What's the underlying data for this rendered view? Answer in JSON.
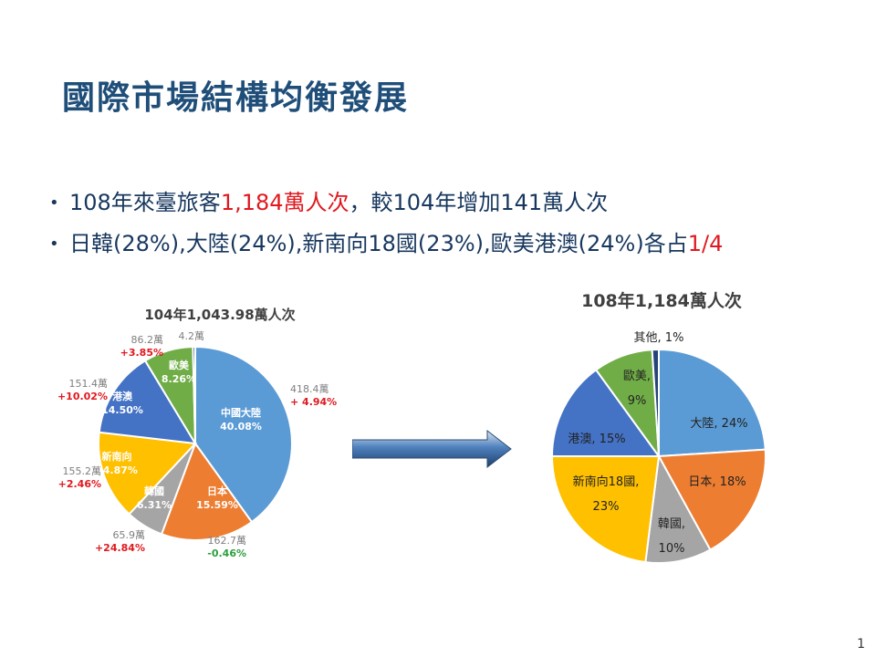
{
  "slide": {
    "title": "國際市場結構均衡發展",
    "bullets": [
      {
        "pre": "108年來臺旅客",
        "highlight": "1,184萬人次",
        "post": "，較104年增加141萬人次"
      },
      {
        "pre": "日韓(28%),大陸(24%),新南向18國(23%),歐美港澳(24%)各占",
        "highlight": "1/4",
        "post": ""
      }
    ],
    "page_number": "1"
  },
  "colors": {
    "china": "#5b9bd5",
    "japan": "#ed7d31",
    "korea": "#a5a5a5",
    "southbound": "#ffc000",
    "hk_macau": "#4472c4",
    "euro_us": "#70ad47",
    "other": "#264478",
    "red": "#e0191f",
    "green": "#2e9e3e",
    "title": "#1f4e79",
    "text": "#17375e"
  },
  "chart_data": [
    {
      "type": "pie",
      "title": "104年1,043.98萬人次",
      "slices": [
        {
          "label": "中國大陸",
          "pct_label": "40.08%",
          "value": 40.08,
          "color": "#5b9bd5",
          "count": "418.4萬",
          "change": "+ 4.94%",
          "change_color": "#e0191f"
        },
        {
          "label": "日本",
          "pct_label": "15.59%",
          "value": 15.59,
          "color": "#ed7d31",
          "count": "162.7萬",
          "change": "-0.46%",
          "change_color": "#2e9e3e"
        },
        {
          "label": "韓國",
          "pct_label": "6.31%",
          "value": 6.31,
          "color": "#a5a5a5",
          "count": "65.9萬",
          "change": "+24.84%",
          "change_color": "#e0191f"
        },
        {
          "label": "新南向",
          "pct_label": "14.87%",
          "value": 14.87,
          "color": "#ffc000",
          "count": "155.2萬",
          "change": "+2.46%",
          "change_color": "#e0191f"
        },
        {
          "label": "港澳",
          "pct_label": "14.50%",
          "value": 14.5,
          "color": "#4472c4",
          "count": "151.4萬",
          "change": "+10.02%",
          "change_color": "#e0191f"
        },
        {
          "label": "歐美",
          "pct_label": "8.26%",
          "value": 8.26,
          "color": "#70ad47",
          "count": "86.2萬",
          "change": "+3.85%",
          "change_color": "#e0191f"
        },
        {
          "label": "",
          "pct_label": "",
          "value": 0.4,
          "color": "#264478",
          "count": "4.2萬",
          "change": "",
          "change_color": "#e0191f"
        }
      ]
    },
    {
      "type": "pie",
      "title": "108年1,184萬人次",
      "slices": [
        {
          "label": "大陸, 24%",
          "value": 24,
          "color": "#5b9bd5"
        },
        {
          "label": "日本, 18%",
          "value": 18,
          "color": "#ed7d31"
        },
        {
          "label": "韓國, 10%",
          "value": 10,
          "color": "#a5a5a5"
        },
        {
          "label": "新南向18國, 23%",
          "value": 23,
          "color": "#ffc000"
        },
        {
          "label": "港澳, 15%",
          "value": 15,
          "color": "#4472c4"
        },
        {
          "label": "歐美, 9%",
          "value": 9,
          "color": "#70ad47"
        },
        {
          "label": "其他, 1%",
          "value": 1,
          "color": "#264478"
        }
      ]
    }
  ]
}
